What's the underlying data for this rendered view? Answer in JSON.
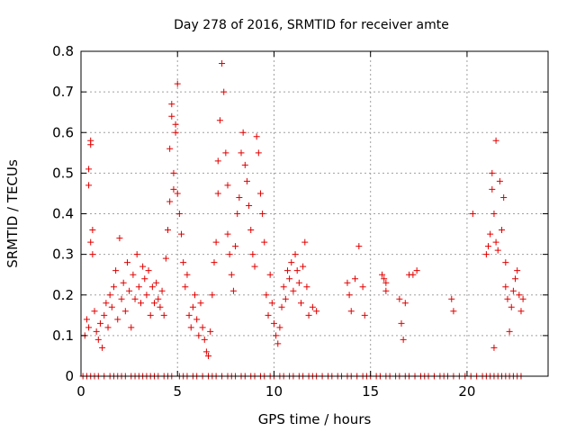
{
  "chart_data": {
    "type": "scatter",
    "title": "Day 278 of 2016, SRMTID for receiver amte",
    "xlabel": "GPS time / hours",
    "ylabel": "SRMTID / TECUs",
    "xlim": [
      0,
      24.2
    ],
    "ylim": [
      0,
      0.8
    ],
    "xticks": [
      0,
      5,
      10,
      15,
      20
    ],
    "xtick_labels": [
      "0",
      "5",
      "10",
      "15",
      "20"
    ],
    "yticks": [
      0,
      0.1,
      0.2,
      0.3,
      0.4,
      0.5,
      0.6,
      0.7,
      0.8
    ],
    "ytick_labels": [
      "0",
      "0.1",
      "0.2",
      "0.3",
      "0.4",
      "0.5",
      "0.6",
      "0.7",
      "0.8"
    ],
    "grid": true,
    "marker": "+",
    "color": "#e00000",
    "series": [
      {
        "name": "SRMTID",
        "points": [
          [
            0.2,
            0.1
          ],
          [
            0.3,
            0.14
          ],
          [
            0.4,
            0.12
          ],
          [
            0.5,
            0.33
          ],
          [
            0.5,
            0.57
          ],
          [
            0.5,
            0.58
          ],
          [
            0.4,
            0.51
          ],
          [
            0.4,
            0.47
          ],
          [
            0.6,
            0.3
          ],
          [
            0.6,
            0.36
          ],
          [
            0.7,
            0.16
          ],
          [
            0.8,
            0.11
          ],
          [
            0.9,
            0.09
          ],
          [
            1.0,
            0.13
          ],
          [
            1.1,
            0.07
          ],
          [
            1.2,
            0.15
          ],
          [
            1.3,
            0.18
          ],
          [
            1.4,
            0.12
          ],
          [
            1.5,
            0.2
          ],
          [
            1.6,
            0.17
          ],
          [
            1.7,
            0.22
          ],
          [
            1.8,
            0.26
          ],
          [
            1.9,
            0.14
          ],
          [
            2.0,
            0.34
          ],
          [
            2.1,
            0.19
          ],
          [
            2.2,
            0.23
          ],
          [
            2.3,
            0.16
          ],
          [
            2.4,
            0.28
          ],
          [
            2.5,
            0.21
          ],
          [
            2.6,
            0.12
          ],
          [
            2.7,
            0.25
          ],
          [
            2.8,
            0.19
          ],
          [
            2.9,
            0.3
          ],
          [
            3.0,
            0.22
          ],
          [
            3.1,
            0.18
          ],
          [
            3.2,
            0.27
          ],
          [
            3.3,
            0.24
          ],
          [
            3.4,
            0.2
          ],
          [
            3.5,
            0.26
          ],
          [
            3.6,
            0.15
          ],
          [
            3.7,
            0.22
          ],
          [
            3.8,
            0.18
          ],
          [
            3.9,
            0.23
          ],
          [
            4.0,
            0.19
          ],
          [
            4.1,
            0.17
          ],
          [
            4.2,
            0.21
          ],
          [
            4.3,
            0.15
          ],
          [
            4.4,
            0.29
          ],
          [
            4.5,
            0.36
          ],
          [
            4.6,
            0.43
          ],
          [
            4.6,
            0.56
          ],
          [
            4.7,
            0.67
          ],
          [
            4.7,
            0.64
          ],
          [
            4.8,
            0.5
          ],
          [
            4.8,
            0.46
          ],
          [
            4.9,
            0.6
          ],
          [
            4.9,
            0.62
          ],
          [
            5.0,
            0.72
          ],
          [
            5.0,
            0.45
          ],
          [
            5.1,
            0.4
          ],
          [
            5.2,
            0.35
          ],
          [
            5.3,
            0.28
          ],
          [
            5.4,
            0.22
          ],
          [
            5.5,
            0.25
          ],
          [
            5.6,
            0.15
          ],
          [
            5.7,
            0.12
          ],
          [
            5.8,
            0.17
          ],
          [
            5.9,
            0.2
          ],
          [
            6.0,
            0.14
          ],
          [
            6.1,
            0.1
          ],
          [
            6.2,
            0.18
          ],
          [
            6.3,
            0.12
          ],
          [
            6.4,
            0.09
          ],
          [
            6.5,
            0.06
          ],
          [
            6.6,
            0.05
          ],
          [
            6.7,
            0.11
          ],
          [
            6.8,
            0.2
          ],
          [
            6.9,
            0.28
          ],
          [
            7.0,
            0.33
          ],
          [
            7.1,
            0.45
          ],
          [
            7.1,
            0.53
          ],
          [
            7.2,
            0.63
          ],
          [
            7.3,
            0.77
          ],
          [
            7.4,
            0.7
          ],
          [
            7.5,
            0.55
          ],
          [
            7.6,
            0.47
          ],
          [
            7.6,
            0.35
          ],
          [
            7.7,
            0.3
          ],
          [
            7.8,
            0.25
          ],
          [
            7.9,
            0.21
          ],
          [
            8.0,
            0.32
          ],
          [
            8.1,
            0.4
          ],
          [
            8.2,
            0.44
          ],
          [
            8.3,
            0.55
          ],
          [
            8.4,
            0.6
          ],
          [
            8.5,
            0.52
          ],
          [
            8.6,
            0.48
          ],
          [
            8.7,
            0.42
          ],
          [
            8.8,
            0.36
          ],
          [
            8.9,
            0.3
          ],
          [
            9.0,
            0.27
          ],
          [
            9.1,
            0.59
          ],
          [
            9.2,
            0.55
          ],
          [
            9.3,
            0.45
          ],
          [
            9.4,
            0.4
          ],
          [
            9.5,
            0.33
          ],
          [
            9.6,
            0.2
          ],
          [
            9.7,
            0.15
          ],
          [
            9.8,
            0.25
          ],
          [
            9.9,
            0.18
          ],
          [
            10.0,
            0.13
          ],
          [
            10.1,
            0.1
          ],
          [
            10.2,
            0.08
          ],
          [
            10.3,
            0.12
          ],
          [
            10.4,
            0.17
          ],
          [
            10.5,
            0.22
          ],
          [
            10.6,
            0.19
          ],
          [
            10.7,
            0.26
          ],
          [
            10.8,
            0.24
          ],
          [
            10.9,
            0.28
          ],
          [
            11.0,
            0.21
          ],
          [
            11.1,
            0.3
          ],
          [
            11.2,
            0.26
          ],
          [
            11.3,
            0.23
          ],
          [
            11.4,
            0.18
          ],
          [
            11.5,
            0.27
          ],
          [
            11.6,
            0.33
          ],
          [
            11.7,
            0.22
          ],
          [
            11.8,
            0.15
          ],
          [
            12.0,
            0.17
          ],
          [
            12.2,
            0.16
          ],
          [
            13.8,
            0.23
          ],
          [
            13.9,
            0.2
          ],
          [
            14.0,
            0.16
          ],
          [
            14.2,
            0.24
          ],
          [
            14.4,
            0.32
          ],
          [
            14.6,
            0.22
          ],
          [
            14.7,
            0.15
          ],
          [
            15.6,
            0.25
          ],
          [
            15.7,
            0.24
          ],
          [
            15.8,
            0.21
          ],
          [
            15.8,
            0.23
          ],
          [
            16.5,
            0.19
          ],
          [
            16.6,
            0.13
          ],
          [
            16.7,
            0.09
          ],
          [
            16.8,
            0.18
          ],
          [
            17.0,
            0.25
          ],
          [
            17.2,
            0.25
          ],
          [
            17.4,
            0.26
          ],
          [
            19.2,
            0.19
          ],
          [
            19.3,
            0.16
          ],
          [
            20.3,
            0.4
          ],
          [
            21.0,
            0.3
          ],
          [
            21.1,
            0.32
          ],
          [
            21.2,
            0.35
          ],
          [
            21.3,
            0.5
          ],
          [
            21.3,
            0.46
          ],
          [
            21.4,
            0.4
          ],
          [
            21.4,
            0.07
          ],
          [
            21.5,
            0.33
          ],
          [
            21.5,
            0.58
          ],
          [
            21.6,
            0.31
          ],
          [
            21.7,
            0.48
          ],
          [
            21.8,
            0.36
          ],
          [
            21.9,
            0.44
          ],
          [
            22.0,
            0.28
          ],
          [
            22.0,
            0.22
          ],
          [
            22.1,
            0.19
          ],
          [
            22.2,
            0.11
          ],
          [
            22.3,
            0.17
          ],
          [
            22.4,
            0.21
          ],
          [
            22.5,
            0.24
          ],
          [
            22.6,
            0.26
          ],
          [
            22.7,
            0.2
          ],
          [
            22.8,
            0.16
          ],
          [
            22.9,
            0.19
          ]
        ],
        "zero_points_x": [
          0.1,
          0.3,
          0.5,
          0.7,
          0.9,
          1.2,
          1.5,
          1.7,
          1.9,
          2.1,
          2.3,
          2.6,
          2.8,
          3.0,
          3.2,
          3.4,
          3.6,
          3.8,
          4.0,
          4.3,
          4.5,
          4.7,
          5.1,
          5.3,
          5.5,
          5.8,
          6.0,
          6.3,
          6.6,
          6.8,
          7.0,
          7.3,
          7.6,
          7.8,
          8.0,
          8.3,
          8.5,
          8.8,
          9.0,
          9.3,
          9.5,
          9.8,
          10.0,
          10.3,
          10.5,
          10.8,
          11.0,
          11.3,
          11.5,
          11.8,
          12.0,
          12.2,
          12.5,
          12.8,
          13.0,
          13.3,
          13.5,
          13.8,
          14.0,
          14.3,
          14.6,
          14.8,
          15.0,
          15.3,
          15.5,
          15.8,
          16.0,
          16.3,
          16.5,
          16.8,
          17.0,
          17.3,
          17.6,
          17.8,
          18.0,
          18.3,
          18.6,
          18.8,
          19.0,
          19.3,
          19.6,
          19.9,
          20.2,
          20.5,
          20.8,
          21.0,
          21.2,
          21.4,
          21.6,
          21.8,
          22.0,
          22.2,
          22.4,
          22.6,
          22.8
        ]
      }
    ]
  }
}
